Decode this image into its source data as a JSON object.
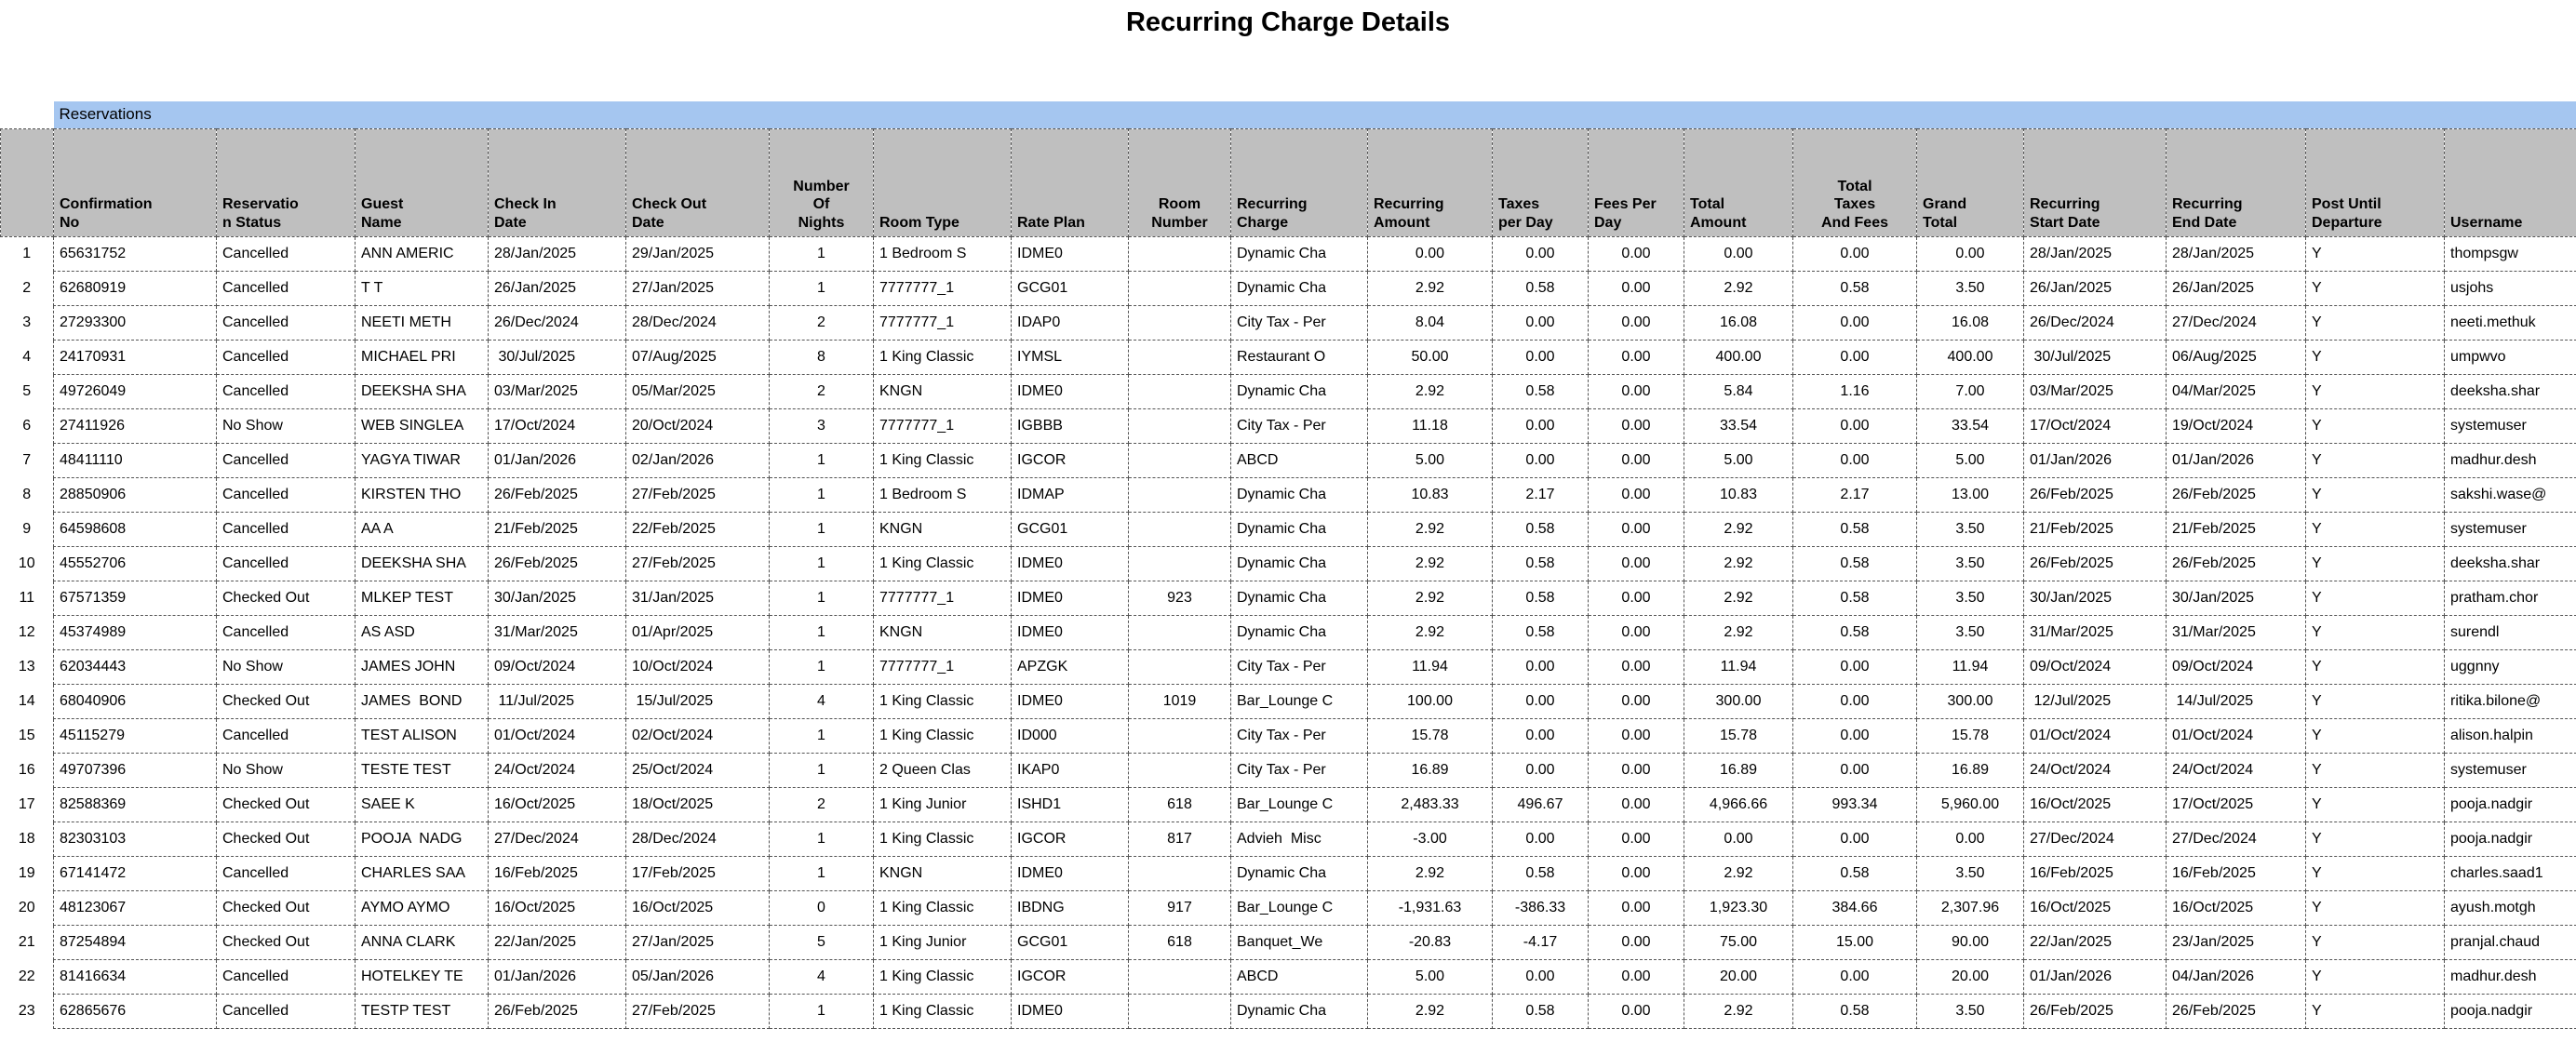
{
  "title": "Recurring Charge Details",
  "section": {
    "label": "Reservations"
  },
  "colors": {
    "section_band": "#A5C6F0",
    "header_bg": "#BFBFBF",
    "border": "#545454",
    "text": "#000000",
    "background": "#FFFFFF"
  },
  "table": {
    "columns": [
      {
        "key": "confirmation_no",
        "label": "Confirmation\nNo"
      },
      {
        "key": "reservation_status",
        "label": "Reservatio\nn Status"
      },
      {
        "key": "guest_name",
        "label": "Guest\nName"
      },
      {
        "key": "check_in_date",
        "label": "Check In\nDate"
      },
      {
        "key": "check_out_date",
        "label": "Check Out\nDate"
      },
      {
        "key": "number_of_nights",
        "label": "Number\nOf\nNights"
      },
      {
        "key": "room_type",
        "label": "Room Type"
      },
      {
        "key": "rate_plan",
        "label": "Rate Plan"
      },
      {
        "key": "room_number",
        "label": "Room\nNumber"
      },
      {
        "key": "recurring_charge",
        "label": "Recurring\nCharge"
      },
      {
        "key": "recurring_amount",
        "label": "Recurring\nAmount"
      },
      {
        "key": "taxes_per_day",
        "label": "Taxes\nper Day"
      },
      {
        "key": "fees_per_day",
        "label": "Fees Per\nDay"
      },
      {
        "key": "total_amount",
        "label": "Total\nAmount"
      },
      {
        "key": "total_taxes_and_fees",
        "label": "Total\nTaxes\nAnd Fees"
      },
      {
        "key": "grand_total",
        "label": "Grand\nTotal"
      },
      {
        "key": "recurring_start_date",
        "label": "Recurring\nStart Date"
      },
      {
        "key": "recurring_end_date",
        "label": "Recurring\nEnd Date"
      },
      {
        "key": "post_until_departure",
        "label": "Post Until\nDeparture"
      },
      {
        "key": "username",
        "label": "Username"
      }
    ],
    "rows": [
      {
        "num": "1",
        "cells": [
          "65631752",
          "Cancelled",
          "ANN AMERIC",
          "28/Jan/2025",
          "29/Jan/2025",
          "1",
          "1 Bedroom S",
          "IDME0",
          "",
          "Dynamic Cha",
          "0.00",
          "0.00",
          "0.00",
          "0.00",
          "0.00",
          "0.00",
          "28/Jan/2025",
          "28/Jan/2025",
          "Y",
          "thompsgw"
        ]
      },
      {
        "num": "2",
        "cells": [
          "62680919",
          "Cancelled",
          "T T",
          "26/Jan/2025",
          "27/Jan/2025",
          "1",
          "7777777_1",
          "GCG01",
          "",
          "Dynamic Cha",
          "2.92",
          "0.58",
          "0.00",
          "2.92",
          "0.58",
          "3.50",
          "26/Jan/2025",
          "26/Jan/2025",
          "Y",
          "usjohs"
        ]
      },
      {
        "num": "3",
        "cells": [
          "27293300",
          "Cancelled",
          "NEETI METH",
          "26/Dec/2024",
          "28/Dec/2024",
          "2",
          "7777777_1",
          "IDAP0",
          "",
          "City Tax - Per",
          "8.04",
          "0.00",
          "0.00",
          "16.08",
          "0.00",
          "16.08",
          "26/Dec/2024",
          "27/Dec/2024",
          "Y",
          "neeti.methuk"
        ]
      },
      {
        "num": "4",
        "cells": [
          "24170931",
          "Cancelled",
          "MICHAEL PRI",
          " 30/Jul/2025",
          "07/Aug/2025",
          "8",
          "1 King Classic",
          "IYMSL",
          "",
          "Restaurant O",
          "50.00",
          "0.00",
          "0.00",
          "400.00",
          "0.00",
          "400.00",
          " 30/Jul/2025",
          "06/Aug/2025",
          "Y",
          "umpwvo"
        ]
      },
      {
        "num": "5",
        "cells": [
          "49726049",
          "Cancelled",
          "DEEKSHA SHA",
          "03/Mar/2025",
          "05/Mar/2025",
          "2",
          "KNGN",
          "IDME0",
          "",
          "Dynamic Cha",
          "2.92",
          "0.58",
          "0.00",
          "5.84",
          "1.16",
          "7.00",
          "03/Mar/2025",
          "04/Mar/2025",
          "Y",
          "deeksha.shar"
        ]
      },
      {
        "num": "6",
        "cells": [
          "27411926",
          "No Show",
          "WEB SINGLEA",
          "17/Oct/2024",
          "20/Oct/2024",
          "3",
          "7777777_1",
          "IGBBB",
          "",
          "City Tax - Per",
          "11.18",
          "0.00",
          "0.00",
          "33.54",
          "0.00",
          "33.54",
          "17/Oct/2024",
          "19/Oct/2024",
          "Y",
          "systemuser"
        ]
      },
      {
        "num": "7",
        "cells": [
          "48411110",
          "Cancelled",
          "YAGYA TIWAR",
          "01/Jan/2026",
          "02/Jan/2026",
          "1",
          "1 King Classic",
          "IGCOR",
          "",
          "ABCD",
          "5.00",
          "0.00",
          "0.00",
          "5.00",
          "0.00",
          "5.00",
          "01/Jan/2026",
          "01/Jan/2026",
          "Y",
          "madhur.desh"
        ]
      },
      {
        "num": "8",
        "cells": [
          "28850906",
          "Cancelled",
          "KIRSTEN THO",
          "26/Feb/2025",
          "27/Feb/2025",
          "1",
          "1 Bedroom S",
          "IDMAP",
          "",
          "Dynamic Cha",
          "10.83",
          "2.17",
          "0.00",
          "10.83",
          "2.17",
          "13.00",
          "26/Feb/2025",
          "26/Feb/2025",
          "Y",
          "sakshi.wase@"
        ]
      },
      {
        "num": "9",
        "cells": [
          "64598608",
          "Cancelled",
          "AA A",
          "21/Feb/2025",
          "22/Feb/2025",
          "1",
          "KNGN",
          "GCG01",
          "",
          "Dynamic Cha",
          "2.92",
          "0.58",
          "0.00",
          "2.92",
          "0.58",
          "3.50",
          "21/Feb/2025",
          "21/Feb/2025",
          "Y",
          "systemuser"
        ]
      },
      {
        "num": "10",
        "cells": [
          "45552706",
          "Cancelled",
          "DEEKSHA SHA",
          "26/Feb/2025",
          "27/Feb/2025",
          "1",
          "1 King Classic",
          "IDME0",
          "",
          "Dynamic Cha",
          "2.92",
          "0.58",
          "0.00",
          "2.92",
          "0.58",
          "3.50",
          "26/Feb/2025",
          "26/Feb/2025",
          "Y",
          "deeksha.shar"
        ]
      },
      {
        "num": "11",
        "cells": [
          "67571359",
          "Checked Out",
          "MLKEP TEST",
          "30/Jan/2025",
          "31/Jan/2025",
          "1",
          "7777777_1",
          "IDME0",
          "923",
          "Dynamic Cha",
          "2.92",
          "0.58",
          "0.00",
          "2.92",
          "0.58",
          "3.50",
          "30/Jan/2025",
          "30/Jan/2025",
          "Y",
          "pratham.chor"
        ]
      },
      {
        "num": "12",
        "cells": [
          "45374989",
          "Cancelled",
          "AS ASD",
          "31/Mar/2025",
          "01/Apr/2025",
          "1",
          "KNGN",
          "IDME0",
          "",
          "Dynamic Cha",
          "2.92",
          "0.58",
          "0.00",
          "2.92",
          "0.58",
          "3.50",
          "31/Mar/2025",
          "31/Mar/2025",
          "Y",
          "surendl"
        ]
      },
      {
        "num": "13",
        "cells": [
          "62034443",
          "No Show",
          "JAMES JOHN",
          "09/Oct/2024",
          "10/Oct/2024",
          "1",
          "7777777_1",
          "APZGK",
          "",
          "City Tax - Per",
          "11.94",
          "0.00",
          "0.00",
          "11.94",
          "0.00",
          "11.94",
          "09/Oct/2024",
          "09/Oct/2024",
          "Y",
          "uggnny"
        ]
      },
      {
        "num": "14",
        "cells": [
          "68040906",
          "Checked Out",
          "JAMES  BOND",
          " 11/Jul/2025",
          " 15/Jul/2025",
          "4",
          "1 King Classic",
          "IDME0",
          "1019",
          "Bar_Lounge C",
          "100.00",
          "0.00",
          "0.00",
          "300.00",
          "0.00",
          "300.00",
          " 12/Jul/2025",
          " 14/Jul/2025",
          "Y",
          "ritika.bilone@"
        ]
      },
      {
        "num": "15",
        "cells": [
          "45115279",
          "Cancelled",
          "TEST ALISON",
          "01/Oct/2024",
          "02/Oct/2024",
          "1",
          "1 King Classic",
          "ID000",
          "",
          "City Tax - Per",
          "15.78",
          "0.00",
          "0.00",
          "15.78",
          "0.00",
          "15.78",
          "01/Oct/2024",
          "01/Oct/2024",
          "Y",
          "alison.halpin"
        ]
      },
      {
        "num": "16",
        "cells": [
          "49707396",
          "No Show",
          "TESTE TEST",
          "24/Oct/2024",
          "25/Oct/2024",
          "1",
          "2 Queen Clas",
          "IKAP0",
          "",
          "City Tax - Per",
          "16.89",
          "0.00",
          "0.00",
          "16.89",
          "0.00",
          "16.89",
          "24/Oct/2024",
          "24/Oct/2024",
          "Y",
          "systemuser"
        ]
      },
      {
        "num": "17",
        "cells": [
          "82588369",
          "Checked Out",
          "SAEE K",
          "16/Oct/2025",
          "18/Oct/2025",
          "2",
          "1 King Junior",
          "ISHD1",
          "618",
          "Bar_Lounge C",
          "2,483.33",
          "496.67",
          "0.00",
          "4,966.66",
          "993.34",
          "5,960.00",
          "16/Oct/2025",
          "17/Oct/2025",
          "Y",
          "pooja.nadgir"
        ]
      },
      {
        "num": "18",
        "cells": [
          "82303103",
          "Checked Out",
          "POOJA  NADG",
          "27/Dec/2024",
          "28/Dec/2024",
          "1",
          "1 King Classic",
          "IGCOR",
          "817",
          "Advieh  Misc",
          "-3.00",
          "0.00",
          "0.00",
          "0.00",
          "0.00",
          "0.00",
          "27/Dec/2024",
          "27/Dec/2024",
          "Y",
          "pooja.nadgir"
        ]
      },
      {
        "num": "19",
        "cells": [
          "67141472",
          "Cancelled",
          "CHARLES SAA",
          "16/Feb/2025",
          "17/Feb/2025",
          "1",
          "KNGN",
          "IDME0",
          "",
          "Dynamic Cha",
          "2.92",
          "0.58",
          "0.00",
          "2.92",
          "0.58",
          "3.50",
          "16/Feb/2025",
          "16/Feb/2025",
          "Y",
          "charles.saad1"
        ]
      },
      {
        "num": "20",
        "cells": [
          "48123067",
          "Checked Out",
          "AYMO AYMO",
          "16/Oct/2025",
          "16/Oct/2025",
          "0",
          "1 King Classic",
          "IBDNG",
          "917",
          "Bar_Lounge C",
          "-1,931.63",
          "-386.33",
          "0.00",
          "1,923.30",
          "384.66",
          "2,307.96",
          "16/Oct/2025",
          "16/Oct/2025",
          "Y",
          "ayush.motgh"
        ]
      },
      {
        "num": "21",
        "cells": [
          "87254894",
          "Checked Out",
          "ANNA CLARK",
          "22/Jan/2025",
          "27/Jan/2025",
          "5",
          "1 King Junior",
          "GCG01",
          "618",
          "Banquet_We",
          "-20.83",
          "-4.17",
          "0.00",
          "75.00",
          "15.00",
          "90.00",
          "22/Jan/2025",
          "23/Jan/2025",
          "Y",
          "pranjal.chaud"
        ]
      },
      {
        "num": "22",
        "cells": [
          "81416634",
          "Cancelled",
          "HOTELKEY TE",
          "01/Jan/2026",
          "05/Jan/2026",
          "4",
          "1 King Classic",
          "IGCOR",
          "",
          "ABCD",
          "5.00",
          "0.00",
          "0.00",
          "20.00",
          "0.00",
          "20.00",
          "01/Jan/2026",
          "04/Jan/2026",
          "Y",
          "madhur.desh"
        ]
      },
      {
        "num": "23",
        "cells": [
          "62865676",
          "Cancelled",
          "TESTP TEST",
          "26/Feb/2025",
          "27/Feb/2025",
          "1",
          "1 King Classic",
          "IDME0",
          "",
          "Dynamic Cha",
          "2.92",
          "0.58",
          "0.00",
          "2.92",
          "0.58",
          "3.50",
          "26/Feb/2025",
          "26/Feb/2025",
          "Y",
          "pooja.nadgir"
        ]
      }
    ]
  }
}
